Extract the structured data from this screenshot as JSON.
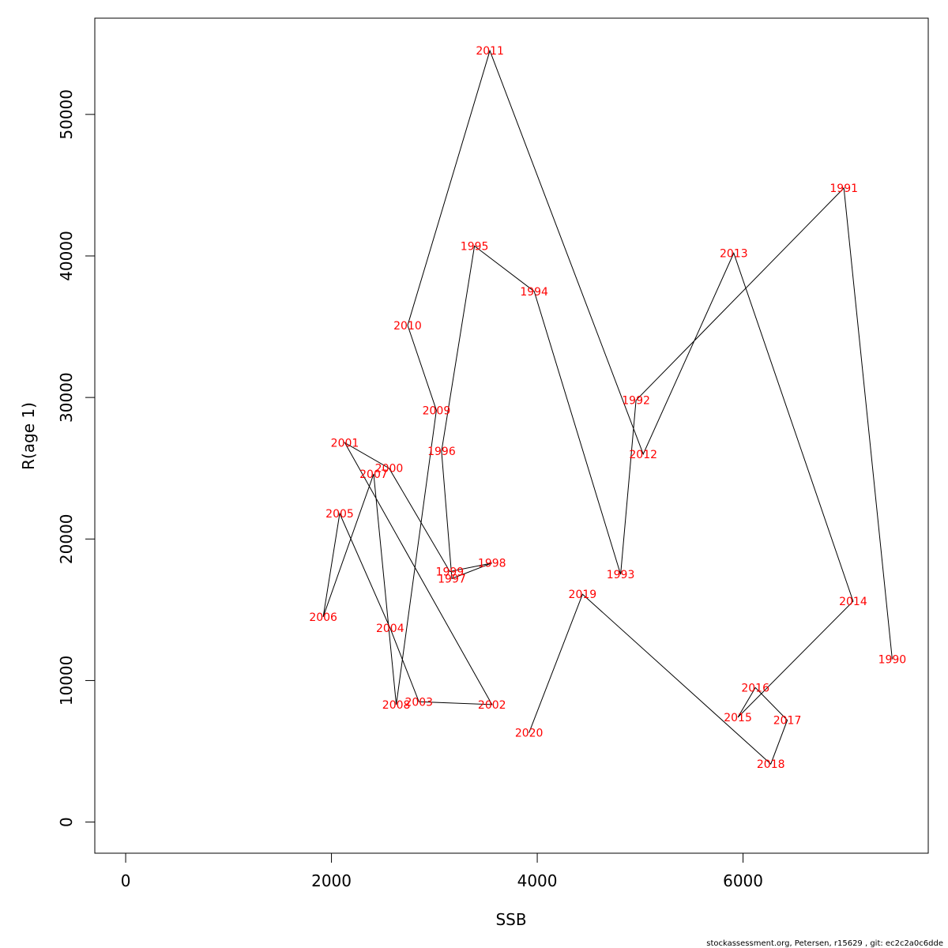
{
  "chart_data": {
    "type": "scatter",
    "connected": true,
    "xlabel": "SSB",
    "ylabel": "R(age 1)",
    "xlim": [
      -300,
      7800
    ],
    "ylim": [
      -2200,
      56800
    ],
    "xticks": [
      0,
      2000,
      4000,
      6000
    ],
    "yticks": [
      0,
      10000,
      20000,
      30000,
      40000,
      50000
    ],
    "label_color": "#ff0000",
    "line_color": "#000000",
    "points": [
      {
        "label": "1990",
        "x": 7450,
        "y": 11500
      },
      {
        "label": "1991",
        "x": 6980,
        "y": 44800
      },
      {
        "label": "1992",
        "x": 4960,
        "y": 29800
      },
      {
        "label": "1993",
        "x": 4810,
        "y": 17500
      },
      {
        "label": "1994",
        "x": 3970,
        "y": 37500
      },
      {
        "label": "1995",
        "x": 3390,
        "y": 40700
      },
      {
        "label": "1996",
        "x": 3070,
        "y": 26200
      },
      {
        "label": "1997",
        "x": 3170,
        "y": 17200
      },
      {
        "label": "1998",
        "x": 3560,
        "y": 18300
      },
      {
        "label": "1999",
        "x": 3150,
        "y": 17700
      },
      {
        "label": "2000",
        "x": 2560,
        "y": 25000
      },
      {
        "label": "2001",
        "x": 2130,
        "y": 26800
      },
      {
        "label": "2002",
        "x": 3560,
        "y": 8300
      },
      {
        "label": "2003",
        "x": 2850,
        "y": 8500
      },
      {
        "label": "2004",
        "x": 2570,
        "y": 13700
      },
      {
        "label": "2005",
        "x": 2080,
        "y": 21800
      },
      {
        "label": "2006",
        "x": 1920,
        "y": 14500
      },
      {
        "label": "2007",
        "x": 2410,
        "y": 24600
      },
      {
        "label": "2008",
        "x": 2630,
        "y": 8300
      },
      {
        "label": "2009",
        "x": 3020,
        "y": 29100
      },
      {
        "label": "2010",
        "x": 2740,
        "y": 35100
      },
      {
        "label": "2011",
        "x": 3540,
        "y": 54500
      },
      {
        "label": "2012",
        "x": 5030,
        "y": 26000
      },
      {
        "label": "2013",
        "x": 5910,
        "y": 40200
      },
      {
        "label": "2014",
        "x": 7070,
        "y": 15600
      },
      {
        "label": "2015",
        "x": 5950,
        "y": 7400
      },
      {
        "label": "2016",
        "x": 6120,
        "y": 9500
      },
      {
        "label": "2017",
        "x": 6430,
        "y": 7200
      },
      {
        "label": "2018",
        "x": 6270,
        "y": 4100
      },
      {
        "label": "2019",
        "x": 4440,
        "y": 16100
      },
      {
        "label": "2020",
        "x": 3920,
        "y": 6300
      }
    ]
  },
  "footer": "stockassessment.org, Petersen, r15629 , git: ec2c2a0c6dde"
}
